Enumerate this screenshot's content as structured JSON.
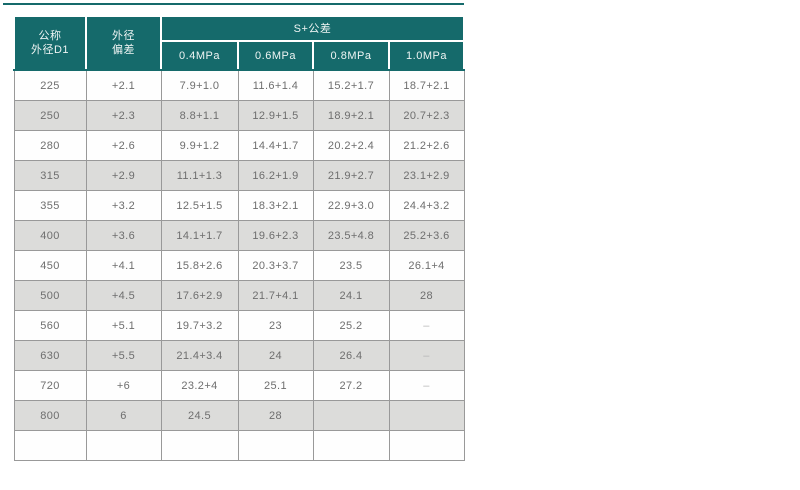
{
  "colors": {
    "header_teal": "#156a6b",
    "row_alt_gray": "#dcdcda",
    "grid_border": "#999999",
    "body_text": "#6e6e6e",
    "dash_text": "#b5b5b5",
    "header_text": "#eef4f3"
  },
  "table": {
    "col1_header": {
      "line1": "公称",
      "line2": "外径D1"
    },
    "col2_header": {
      "line1": "外径",
      "line2": "偏差"
    },
    "group_header": "S+公差",
    "pressure_headers": [
      "0.4MPa",
      "0.6MPa",
      "0.8MPa",
      "1.0MPa"
    ],
    "rows": [
      [
        "225",
        "+2.1",
        "7.9+1.0",
        "11.6+1.4",
        "15.2+1.7",
        "18.7+2.1"
      ],
      [
        "250",
        "+2.3",
        "8.8+1.1",
        "12.9+1.5",
        "18.9+2.1",
        "20.7+2.3"
      ],
      [
        "280",
        "+2.6",
        "9.9+1.2",
        "14.4+1.7",
        "20.2+2.4",
        "21.2+2.6"
      ],
      [
        "315",
        "+2.9",
        "11.1+1.3",
        "16.2+1.9",
        "21.9+2.7",
        "23.1+2.9"
      ],
      [
        "355",
        "+3.2",
        "12.5+1.5",
        "18.3+2.1",
        "22.9+3.0",
        "24.4+3.2"
      ],
      [
        "400",
        "+3.6",
        "14.1+1.7",
        "19.6+2.3",
        "23.5+4.8",
        "25.2+3.6"
      ],
      [
        "450",
        "+4.1",
        "15.8+2.6",
        "20.3+3.7",
        "23.5",
        "26.1+4"
      ],
      [
        "500",
        "+4.5",
        "17.6+2.9",
        "21.7+4.1",
        "24.1",
        "28"
      ],
      [
        "560",
        "+5.1",
        "19.7+3.2",
        "23",
        "25.2",
        "–"
      ],
      [
        "630",
        "+5.5",
        "21.4+3.4",
        "24",
        "26.4",
        "–"
      ],
      [
        "720",
        "+6",
        "23.2+4",
        "25.1",
        "27.2",
        "–"
      ],
      [
        "800",
        "6",
        "24.5",
        "28",
        "",
        ""
      ],
      [
        "",
        "",
        "",
        "",
        "",
        ""
      ]
    ]
  }
}
